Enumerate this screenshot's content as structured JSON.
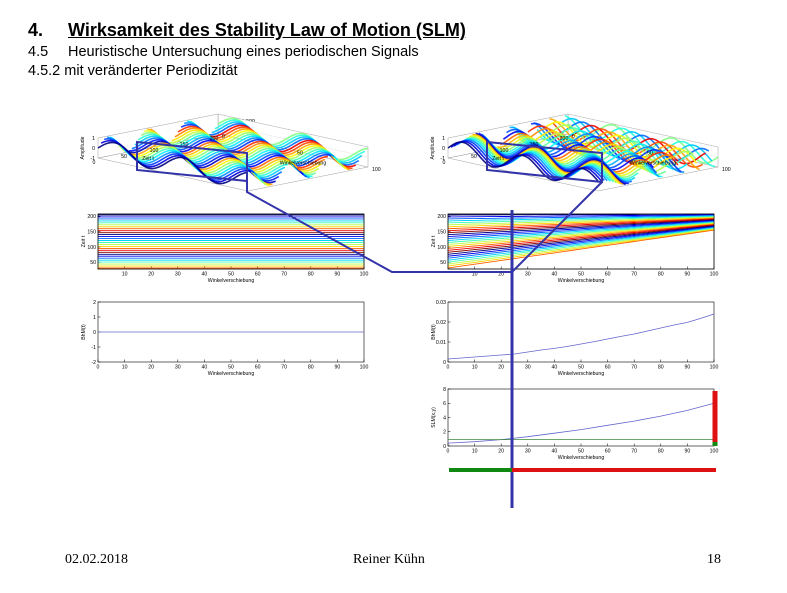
{
  "heading": {
    "number": "4.",
    "text": "Wirksamkeit des Stability Law of Motion (SLM)"
  },
  "subheading": {
    "number": "4.5",
    "text": "Heuristische Untersuchung eines periodischen Signals"
  },
  "subsubheading": {
    "text": "4.5.2 mit veränderter Periodizität"
  },
  "figure_title": "Abbildung 006 000",
  "footer": {
    "date": "02.02.2018",
    "author": "Reiner Kühn",
    "page": "18"
  },
  "labels": {
    "amplitude": "Amplitude",
    "zeit": "Zeit t",
    "winkel": "Winkelverschiebung",
    "bhm": "BhM(t)",
    "slm": "SLM(x,y)"
  },
  "colors": {
    "connector_blue": "#3333aa",
    "marker_green": "#118811",
    "marker_red": "#dd1111",
    "plot_line": "#6666cc"
  },
  "chart_data": [
    {
      "type": "surface",
      "panel": "left-3d",
      "title": "Abbildung 006 000",
      "zlabel": "Amplitude",
      "xlabel": "Winkelverschiebung",
      "ylabel": "Zeit t",
      "zticks": [
        "1",
        "0",
        "-1"
      ],
      "xticks": [
        "0",
        "50",
        "100"
      ],
      "yticks": [
        "200",
        "150",
        "100",
        "50",
        "0"
      ]
    },
    {
      "type": "surface",
      "panel": "right-3d",
      "zlabel": "Amplitude",
      "xlabel": "Winkelverschiebung",
      "ylabel": "Zeit t",
      "zticks": [
        "1",
        "0",
        "-1"
      ],
      "xticks": [
        "0",
        "50",
        "100"
      ],
      "yticks": [
        "200",
        "150",
        "100",
        "50",
        "0"
      ]
    },
    {
      "type": "contour",
      "panel": "left-contour",
      "xlabel": "Winkelverschiebung",
      "ylabel": "Zeit t",
      "xticks": [
        "10",
        "20",
        "30",
        "40",
        "50",
        "60",
        "70",
        "80",
        "90",
        "100"
      ],
      "yticks": [
        "200",
        "150",
        "100",
        "50"
      ]
    },
    {
      "type": "contour",
      "panel": "right-contour",
      "xlabel": "Winkelverschiebung",
      "ylabel": "Zeit t",
      "xticks": [
        "10",
        "20",
        "30",
        "40",
        "50",
        "60",
        "70",
        "80",
        "90",
        "100"
      ],
      "yticks": [
        "200",
        "150",
        "100",
        "50"
      ]
    },
    {
      "type": "line",
      "panel": "left-bhm",
      "xlabel": "Winkelverschiebung",
      "ylabel": "BhM(t)",
      "xlim": [
        0,
        100
      ],
      "ylim": [
        -2,
        2
      ],
      "xticks": [
        "0",
        "10",
        "20",
        "30",
        "40",
        "50",
        "60",
        "70",
        "80",
        "90",
        "100"
      ],
      "yticks": [
        "2",
        "1",
        "0",
        "-1",
        "-2"
      ],
      "x": [
        0,
        100
      ],
      "y": [
        0,
        0
      ]
    },
    {
      "type": "line",
      "panel": "right-bhm",
      "xlabel": "Winkelverschiebung",
      "ylabel": "BhM(t)",
      "xlim": [
        0,
        100
      ],
      "ylim": [
        0,
        0.03
      ],
      "xticks": [
        "0",
        "10",
        "20",
        "30",
        "40",
        "50",
        "60",
        "70",
        "80",
        "90",
        "100"
      ],
      "yticks": [
        "0.03",
        "0.02",
        "0.01",
        "0"
      ],
      "x": [
        0,
        5,
        10,
        15,
        20,
        25,
        30,
        35,
        40,
        45,
        50,
        55,
        60,
        65,
        70,
        75,
        80,
        85,
        90,
        95,
        100
      ],
      "y": [
        0.0015,
        0.002,
        0.0025,
        0.003,
        0.0035,
        0.004,
        0.005,
        0.006,
        0.0068,
        0.0078,
        0.009,
        0.0102,
        0.0115,
        0.0128,
        0.014,
        0.0155,
        0.017,
        0.0185,
        0.0198,
        0.0218,
        0.024
      ]
    },
    {
      "type": "line",
      "panel": "right-slm",
      "xlabel": "Winkelverschiebung",
      "ylabel": "SLM(x,y)",
      "xlim": [
        0,
        100
      ],
      "ylim": [
        0,
        8
      ],
      "xticks": [
        "0",
        "10",
        "20",
        "30",
        "40",
        "50",
        "60",
        "70",
        "80",
        "90",
        "100"
      ],
      "yticks": [
        "8",
        "6",
        "4",
        "2",
        "0"
      ],
      "series": [
        {
          "x": [
            0,
            10,
            20,
            30,
            40,
            50,
            60,
            70,
            80,
            90,
            100
          ],
          "y": [
            0.4,
            0.6,
            0.9,
            1.3,
            1.8,
            2.3,
            2.9,
            3.5,
            4.2,
            5.0,
            6.0
          ]
        },
        {
          "x": [
            0,
            100
          ],
          "y": [
            0.9,
            0.9
          ]
        }
      ]
    }
  ]
}
